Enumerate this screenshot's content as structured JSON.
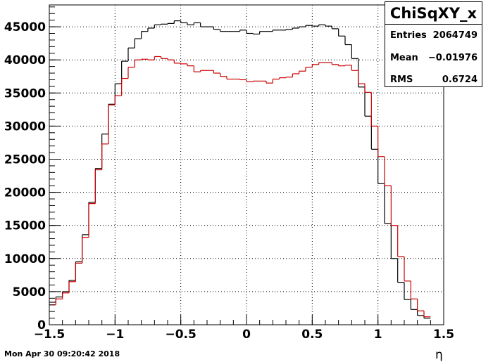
{
  "timestamp": "Mon Apr 30 09:20:42 2018",
  "stats": {
    "title": "ChiSqXY_x",
    "rows": [
      {
        "label": "Entries",
        "value": "2064749"
      },
      {
        "label": "Mean",
        "value": "−0.01976"
      },
      {
        "label": "RMS",
        "value": "0.6724"
      }
    ]
  },
  "chart_data": {
    "type": "line",
    "histogram_style": "step",
    "xlabel": "η",
    "ylabel": "",
    "xlim": [
      -1.5,
      1.5
    ],
    "ylim": [
      0,
      48300
    ],
    "bin_width": 0.05,
    "grid": true,
    "x_ticks": [
      {
        "value": -1.5,
        "label": "−1.5"
      },
      {
        "value": -1,
        "label": "−1"
      },
      {
        "value": -0.5,
        "label": "−0.5"
      },
      {
        "value": 0,
        "label": "0"
      },
      {
        "value": 0.5,
        "label": "0.5"
      },
      {
        "value": 1,
        "label": "1"
      },
      {
        "value": 1.5,
        "label": "1.5"
      }
    ],
    "y_ticks": [
      {
        "value": 0,
        "label": "0"
      },
      {
        "value": 5000,
        "label": "5000"
      },
      {
        "value": 10000,
        "label": "10000"
      },
      {
        "value": 15000,
        "label": "15000"
      },
      {
        "value": 20000,
        "label": "20000"
      },
      {
        "value": 25000,
        "label": "25000"
      },
      {
        "value": 30000,
        "label": "30000"
      },
      {
        "value": 35000,
        "label": "35000"
      },
      {
        "value": 40000,
        "label": "40000"
      },
      {
        "value": 45000,
        "label": "45000"
      }
    ],
    "series": [
      {
        "color": "#000000",
        "values": [
          3400,
          4200,
          5000,
          6700,
          9500,
          13600,
          18500,
          23600,
          28800,
          33300,
          36400,
          39800,
          41800,
          43200,
          44300,
          44800,
          45300,
          45400,
          45500,
          45900,
          45600,
          45300,
          45600,
          45000,
          45000,
          44600,
          44300,
          44300,
          44300,
          44500,
          44000,
          43900,
          44300,
          44300,
          44500,
          44500,
          44600,
          44800,
          45000,
          45200,
          45100,
          45300,
          45100,
          44700,
          43600,
          42300,
          40200,
          35900,
          31500,
          26500,
          21300,
          15300,
          10000,
          6400,
          3800,
          2300,
          1400,
          1000
        ]
      },
      {
        "color": "#cc0000",
        "values": [
          3000,
          3900,
          4800,
          6500,
          9300,
          13200,
          18300,
          23400,
          27300,
          33200,
          34600,
          37200,
          38900,
          40000,
          40100,
          40000,
          40500,
          40200,
          40000,
          39500,
          39400,
          39100,
          38200,
          38400,
          38400,
          38000,
          37500,
          37100,
          37100,
          37000,
          36700,
          36800,
          36800,
          36500,
          37100,
          37300,
          37400,
          37900,
          38300,
          38900,
          39300,
          39600,
          39600,
          39300,
          39100,
          39200,
          38400,
          36400,
          35100,
          30000,
          25400,
          21000,
          15000,
          10300,
          6600,
          3900,
          2100,
          1200
        ]
      }
    ]
  }
}
